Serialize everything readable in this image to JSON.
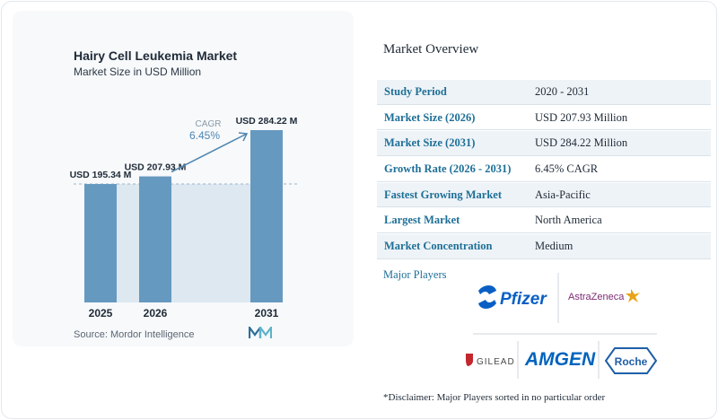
{
  "chart_data": {
    "type": "bar",
    "title": "Hairy Cell Leukemia Market",
    "subtitle": "Market Size in USD Million",
    "categories": [
      "2025",
      "2026",
      "2031"
    ],
    "values": [
      195.34,
      207.93,
      284.22
    ],
    "value_labels": [
      "USD 195.34 M",
      "USD 207.93 M",
      "USD 284.22 M"
    ],
    "cagr_label": "CAGR",
    "cagr_value": "6.45%",
    "ylim": [
      0,
      290
    ],
    "grid": false,
    "bar_color": "#6699bf",
    "band_color": "#dde8f1",
    "reference_line_color": "#9bb5c9",
    "arrow_color": "#4f86b0"
  },
  "source": "Source: Mordor Intelligence",
  "overview": {
    "title": "Market Overview",
    "rows": [
      {
        "label": "Study Period",
        "value": "2020 - 2031"
      },
      {
        "label": "Market Size (2026)",
        "value": "USD 207.93 Million"
      },
      {
        "label": "Market Size (2031)",
        "value": "USD 284.22 Million"
      },
      {
        "label": "Growth Rate (2026 - 2031)",
        "value": "6.45% CAGR"
      },
      {
        "label": "Fastest Growing Market",
        "value": "Asia-Pacific"
      },
      {
        "label": "Largest Market",
        "value": "North America"
      },
      {
        "label": "Market Concentration",
        "value": "Medium"
      }
    ]
  },
  "players": {
    "title": "Major Players",
    "logos": [
      "Pfizer",
      "AstraZeneca",
      "GILEAD",
      "AMGEN",
      "Roche"
    ]
  },
  "disclaimer": "*Disclaimer: Major Players sorted in no particular order",
  "colors": {
    "label_blue": "#1e6f97",
    "pfizer_blue": "#0a5fc4",
    "astrazeneca_purple": "#7b2a73",
    "astrazeneca_gold": "#e8a317",
    "gilead_red": "#c1272d",
    "amgen_blue": "#0063be",
    "roche_blue": "#1e5fa8"
  }
}
